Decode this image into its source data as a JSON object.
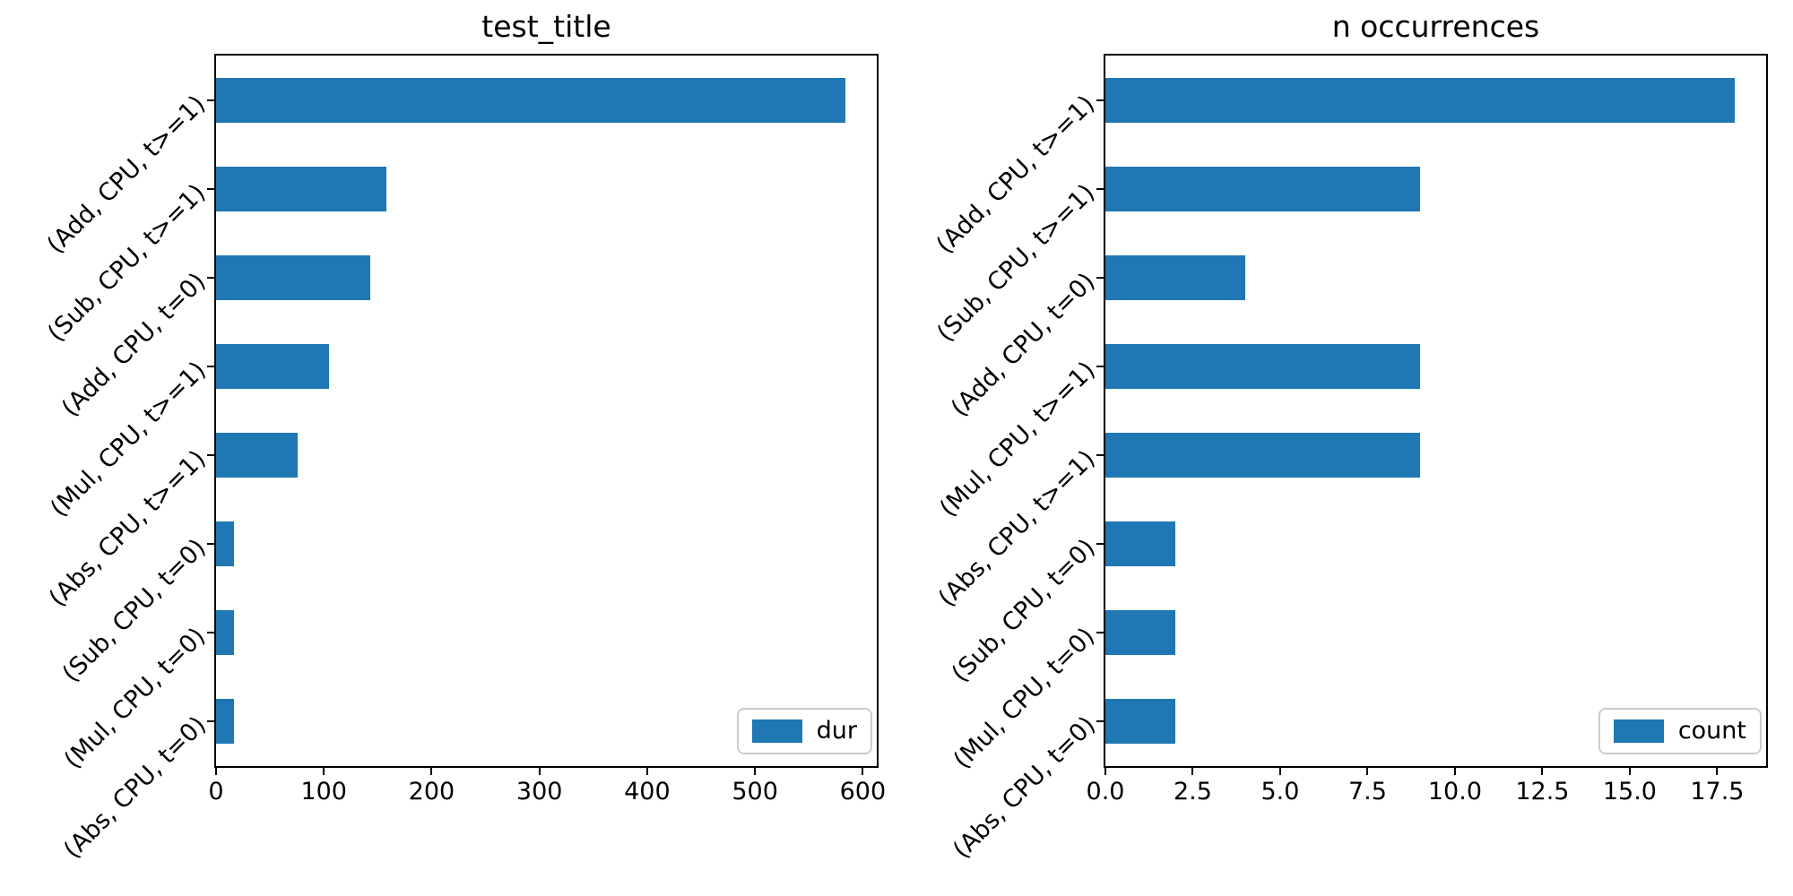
{
  "figure": {
    "background": "#ffffff",
    "bar_color": "#1f77b4",
    "text_color": "#000000",
    "legend_border_color": "#cccccc"
  },
  "chart_data": [
    {
      "type": "bar",
      "orientation": "horizontal",
      "title": "test_title",
      "categories": [
        "(Add, CPU, t>=1)",
        "(Sub, CPU, t>=1)",
        "(Add, CPU, t=0)",
        "(Mul, CPU, t>=1)",
        "(Abs, CPU, t>=1)",
        "(Sub, CPU, t=0)",
        "(Mul, CPU, t=0)",
        "(Abs, CPU, t=0)"
      ],
      "series": [
        {
          "name": "dur",
          "values": [
            584,
            158,
            143,
            105,
            76,
            17,
            17,
            17
          ]
        }
      ],
      "xlim": [
        0,
        613
      ],
      "xticks": [
        0,
        100,
        200,
        300,
        400,
        500,
        600
      ],
      "xtick_labels": [
        "0",
        "100",
        "200",
        "300",
        "400",
        "500",
        "600"
      ],
      "grid": false,
      "legend_position": "lower right"
    },
    {
      "type": "bar",
      "orientation": "horizontal",
      "title": "n occurrences",
      "categories": [
        "(Add, CPU, t>=1)",
        "(Sub, CPU, t>=1)",
        "(Add, CPU, t=0)",
        "(Mul, CPU, t>=1)",
        "(Abs, CPU, t>=1)",
        "(Sub, CPU, t=0)",
        "(Mul, CPU, t=0)",
        "(Abs, CPU, t=0)"
      ],
      "series": [
        {
          "name": "count",
          "values": [
            18,
            9,
            4,
            9,
            9,
            2,
            2,
            2
          ]
        }
      ],
      "xlim": [
        0,
        18.9
      ],
      "xticks": [
        0,
        2.5,
        5,
        7.5,
        10,
        12.5,
        15,
        17.5
      ],
      "xtick_labels": [
        "0.0",
        "2.5",
        "5.0",
        "7.5",
        "10.0",
        "12.5",
        "15.0",
        "17.5"
      ],
      "grid": false,
      "legend_position": "lower right"
    }
  ]
}
